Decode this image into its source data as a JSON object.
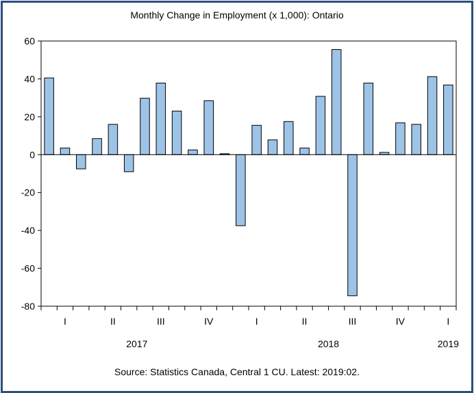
{
  "chart_data": {
    "type": "bar",
    "title": "Monthly Change in Employment (x 1,000): Ontario",
    "source": "Source: Statistics Canada, Central 1 CU. Latest: 2019:02.",
    "ylim": [
      -80,
      60
    ],
    "yticks": [
      "60",
      "40",
      "20",
      "0",
      "-20",
      "-40",
      "-60",
      "-80"
    ],
    "ytick_values": [
      60,
      40,
      20,
      0,
      -20,
      -40,
      -60,
      -80
    ],
    "categories": [
      "2017:01",
      "2017:02",
      "2017:03",
      "2017:04",
      "2017:05",
      "2017:06",
      "2017:07",
      "2017:08",
      "2017:09",
      "2017:10",
      "2017:11",
      "2017:12",
      "2018:01",
      "2018:02",
      "2018:03",
      "2018:04",
      "2018:05",
      "2018:06",
      "2018:07",
      "2018:08",
      "2018:09",
      "2018:10",
      "2018:11",
      "2018:12",
      "2019:01",
      "2019:02"
    ],
    "values": [
      40.5,
      3.5,
      -7.5,
      8.5,
      16.0,
      -9.0,
      29.8,
      37.8,
      23.0,
      2.5,
      28.5,
      0.5,
      -37.5,
      15.5,
      7.8,
      17.5,
      3.5,
      30.8,
      55.5,
      -74.5,
      37.8,
      1.2,
      16.8,
      16.0,
      41.2,
      36.8
    ],
    "quarter_labels": [
      {
        "label": "I",
        "index": 1
      },
      {
        "label": "II",
        "index": 4
      },
      {
        "label": "III",
        "index": 7
      },
      {
        "label": "IV",
        "index": 10
      },
      {
        "label": "I",
        "index": 13
      },
      {
        "label": "II",
        "index": 16
      },
      {
        "label": "III",
        "index": 19
      },
      {
        "label": "IV",
        "index": 22
      },
      {
        "label": "I",
        "index": 25
      }
    ],
    "year_labels": [
      {
        "label": "2017",
        "index": 5.5
      },
      {
        "label": "2018",
        "index": 17.5
      },
      {
        "label": "2019",
        "index": 25
      }
    ],
    "bar_color": "#9dc3e6",
    "bar_stroke": "#000000",
    "frame_color": "#2d4e7e",
    "grid": false,
    "legend": "none"
  }
}
